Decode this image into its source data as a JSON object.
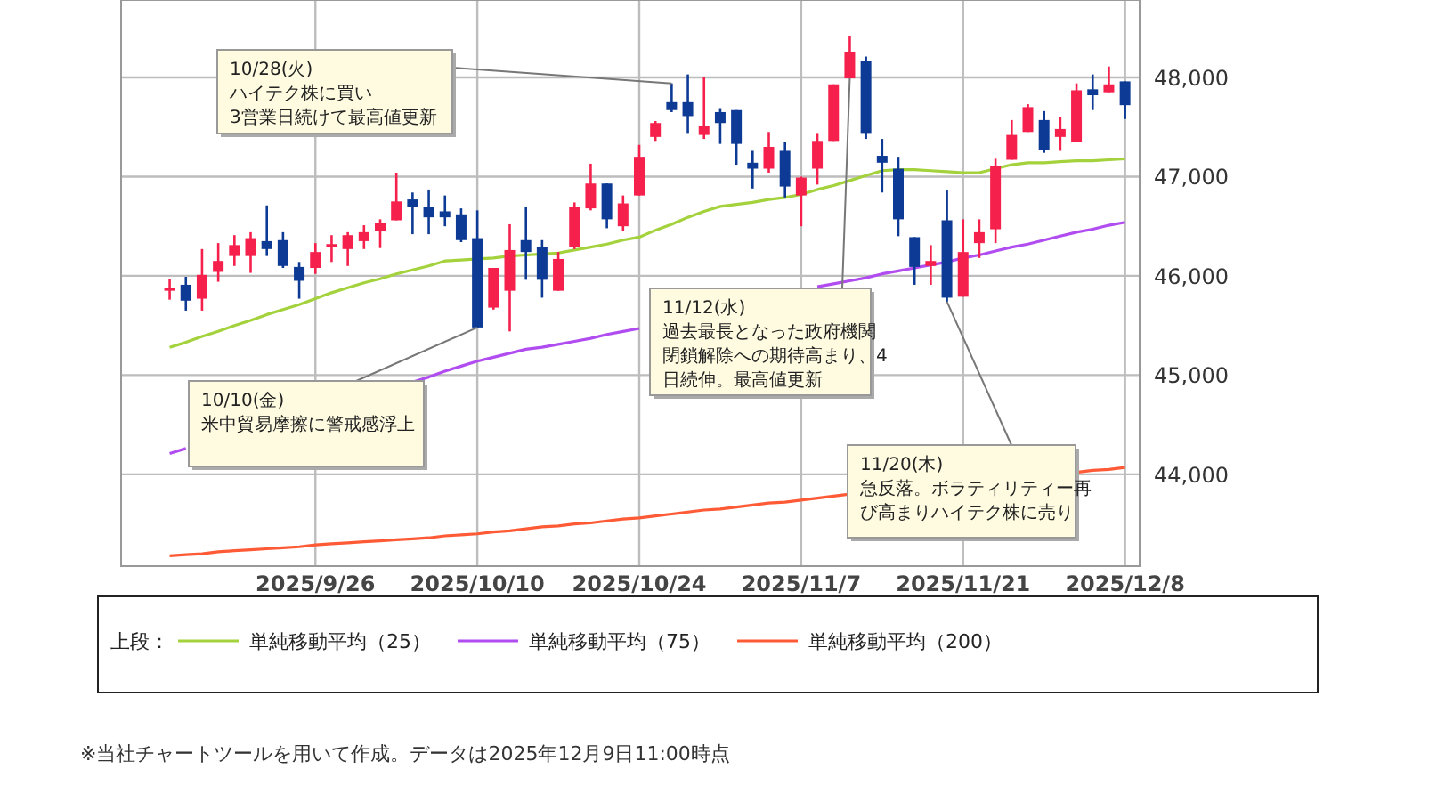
{
  "chart_data": {
    "type": "candlestick",
    "categories": [
      null,
      null,
      null,
      null,
      null,
      null,
      null,
      null,
      null,
      "2025/9/26",
      null,
      null,
      null,
      null,
      null,
      null,
      null,
      null,
      null,
      "2025/10/10",
      null,
      null,
      null,
      null,
      null,
      null,
      null,
      null,
      null,
      "2025/10/24",
      null,
      null,
      null,
      null,
      null,
      null,
      null,
      null,
      null,
      "2025/11/7",
      null,
      null,
      null,
      null,
      null,
      null,
      null,
      null,
      null,
      "2025/11/21",
      null,
      null,
      null,
      null,
      null,
      null,
      null,
      null,
      null,
      "2025/12/8"
    ],
    "series": [
      {
        "ohlc": [
          [
            45850,
            45970,
            45760,
            45880
          ],
          [
            45910,
            45990,
            45650,
            45750
          ],
          [
            45770,
            46270,
            45650,
            46010
          ],
          [
            46040,
            46330,
            45940,
            46150
          ],
          [
            46200,
            46410,
            46100,
            46310
          ],
          [
            46200,
            46440,
            46030,
            46380
          ],
          [
            46350,
            46710,
            46200,
            46270
          ],
          [
            46360,
            46440,
            46080,
            46100
          ],
          [
            46090,
            46140,
            45770,
            45950
          ],
          [
            46080,
            46330,
            46020,
            46240
          ],
          [
            46290,
            46410,
            46140,
            46320
          ],
          [
            46270,
            46440,
            46100,
            46410
          ],
          [
            46350,
            46510,
            46270,
            46440
          ],
          [
            46450,
            46570,
            46280,
            46530
          ],
          [
            46560,
            47040,
            46560,
            46750
          ],
          [
            46770,
            46840,
            46420,
            46690
          ],
          [
            46690,
            46870,
            46420,
            46590
          ],
          [
            46650,
            46810,
            46500,
            46590
          ],
          [
            46620,
            46680,
            46340,
            46360
          ],
          [
            46380,
            46660,
            45480,
            45480
          ],
          [
            45680,
            46080,
            45660,
            46080
          ],
          [
            45850,
            46520,
            45440,
            46260
          ],
          [
            46360,
            46690,
            45960,
            46240
          ],
          [
            46290,
            46360,
            45780,
            45960
          ],
          [
            45850,
            46240,
            45850,
            46170
          ],
          [
            46290,
            46740,
            46270,
            46690
          ],
          [
            46680,
            47130,
            46660,
            46930
          ],
          [
            46930,
            46930,
            46480,
            46570
          ],
          [
            46500,
            46810,
            46450,
            46730
          ],
          [
            46810,
            47320,
            46810,
            47200
          ],
          [
            47400,
            47560,
            47360,
            47540
          ],
          [
            47750,
            47940,
            47650,
            47670
          ],
          [
            47750,
            48030,
            47440,
            47610
          ],
          [
            47420,
            48000,
            47380,
            47510
          ],
          [
            47650,
            47690,
            47330,
            47540
          ],
          [
            47670,
            47670,
            47120,
            47330
          ],
          [
            47140,
            47260,
            46880,
            47080
          ],
          [
            47080,
            47450,
            47040,
            47300
          ],
          [
            47260,
            47350,
            46790,
            46900
          ],
          [
            46810,
            47000,
            46500,
            46990
          ],
          [
            47080,
            47440,
            46920,
            47360
          ],
          [
            47360,
            47930,
            47360,
            47930
          ],
          [
            47990,
            48420,
            47990,
            48260
          ],
          [
            48170,
            48210,
            47380,
            47440
          ],
          [
            47210,
            47380,
            46840,
            47140
          ],
          [
            47080,
            47200,
            46400,
            46570
          ],
          [
            46390,
            46390,
            45910,
            46090
          ],
          [
            46100,
            46310,
            45910,
            46150
          ],
          [
            46560,
            46860,
            45740,
            45780
          ],
          [
            45790,
            46570,
            45790,
            46240
          ],
          [
            46330,
            46570,
            46180,
            46440
          ],
          [
            46470,
            47180,
            46330,
            47110
          ],
          [
            47170,
            47570,
            47170,
            47420
          ],
          [
            47450,
            47730,
            47450,
            47700
          ],
          [
            47570,
            47660,
            47240,
            47270
          ],
          [
            47400,
            47600,
            47260,
            47480
          ],
          [
            47350,
            47940,
            47350,
            47870
          ],
          [
            47880,
            48030,
            47670,
            47820
          ],
          [
            47850,
            48110,
            47850,
            47930
          ],
          [
            47960,
            47960,
            47580,
            47720
          ]
        ],
        "colors": [
          "#f5204b",
          "#0d3a94",
          "#f5204b",
          "#f5204b",
          "#f5204b",
          "#f5204b",
          "#0d3a94",
          "#0d3a94",
          "#0d3a94",
          "#f5204b",
          "#f5204b",
          "#f5204b",
          "#f5204b",
          "#f5204b",
          "#f5204b",
          "#0d3a94",
          "#0d3a94",
          "#0d3a94",
          "#0d3a94",
          "#0d3a94",
          "#f5204b",
          "#f5204b",
          "#0d3a94",
          "#0d3a94",
          "#f5204b",
          "#f5204b",
          "#f5204b",
          "#0d3a94",
          "#f5204b",
          "#f5204b",
          "#f5204b",
          "#0d3a94",
          "#0d3a94",
          "#f5204b",
          "#0d3a94",
          "#0d3a94",
          "#0d3a94",
          "#f5204b",
          "#0d3a94",
          "#f5204b",
          "#f5204b",
          "#f5204b",
          "#f5204b",
          "#0d3a94",
          "#0d3a94",
          "#0d3a94",
          "#0d3a94",
          "#f5204b",
          "#0d3a94",
          "#f5204b",
          "#f5204b",
          "#f5204b",
          "#f5204b",
          "#f5204b",
          "#0d3a94",
          "#f5204b",
          "#f5204b",
          "#0d3a94",
          "#f5204b",
          "#0d3a94"
        ]
      },
      {
        "type": "line",
        "name": "単純移動平均（25）",
        "color": "#a4d23c",
        "values": [
          45280,
          45330,
          45390,
          45440,
          45500,
          45550,
          45610,
          45660,
          45710,
          45770,
          45830,
          45880,
          45930,
          45970,
          46020,
          46060,
          46100,
          46150,
          46160,
          46170,
          46180,
          46200,
          46210,
          46220,
          46230,
          46260,
          46290,
          46320,
          46360,
          46390,
          46460,
          46520,
          46590,
          46650,
          46700,
          46720,
          46740,
          46770,
          46790,
          46820,
          46870,
          46910,
          46960,
          47010,
          47060,
          47070,
          47070,
          47060,
          47050,
          47040,
          47040,
          47080,
          47120,
          47140,
          47140,
          47150,
          47160,
          47160,
          47170,
          47180
        ]
      },
      {
        "type": "line",
        "name": "単純移動平均（75）",
        "color": "#b04cf0",
        "values": [
          44210,
          44260,
          null,
          null,
          null,
          null,
          null,
          null,
          null,
          null,
          null,
          null,
          null,
          null,
          null,
          44930,
          44980,
          45040,
          45090,
          45140,
          45180,
          45220,
          45260,
          45280,
          45310,
          45340,
          45370,
          45410,
          45440,
          45470,
          null,
          null,
          null,
          null,
          null,
          null,
          null,
          null,
          null,
          null,
          45890,
          45920,
          45950,
          45980,
          46020,
          46050,
          46080,
          46110,
          46140,
          46180,
          46210,
          46250,
          46290,
          46320,
          46360,
          46400,
          46440,
          46470,
          46510,
          46540
        ]
      },
      {
        "type": "line",
        "name": "単純移動平均（200）",
        "color": "#ff5a36",
        "values": [
          43180,
          43190,
          43200,
          43220,
          43230,
          43240,
          43250,
          43260,
          43270,
          43290,
          43300,
          43310,
          43320,
          43330,
          43340,
          43350,
          43360,
          43380,
          43390,
          43400,
          43420,
          43430,
          43450,
          43470,
          43480,
          43500,
          43510,
          43530,
          43550,
          43560,
          43580,
          43600,
          43620,
          43640,
          43650,
          43670,
          43690,
          43710,
          43720,
          43740,
          43760,
          43780,
          43800,
          null,
          null,
          null,
          null,
          null,
          null,
          null,
          null,
          null,
          null,
          null,
          null,
          null,
          44020,
          44040,
          44050,
          44070
        ]
      }
    ],
    "ylim": [
      43075,
      48780
    ],
    "yticks": [
      {
        "value": 44000,
        "label": "44,000"
      },
      {
        "value": 45000,
        "label": "45,000"
      },
      {
        "value": 46000,
        "label": "46,000"
      },
      {
        "value": 47000,
        "label": "47,000"
      },
      {
        "value": 48000,
        "label": "48,000"
      }
    ],
    "grid": true,
    "legend": "bottom",
    "legend_title": "上段：",
    "annotations": [
      "10/28(火)\nハイテク株に買い\n3営業日続けて最高値更新",
      "11/12(水)\n過去最長となった政府機関閉鎖解除への期待高まり、4日続伸。最高値更新",
      "10/10(金)\n米中貿易摩擦に警戒感浮上",
      "11/20(木)\n急反落。ボラティリティー再び高まりハイテク株に売り",
      "※当社チャートツールを用いて作成。データは2025年12月9日11:00時点"
    ]
  }
}
